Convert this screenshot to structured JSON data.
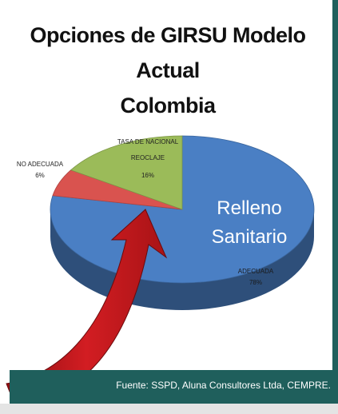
{
  "slide": {
    "title_line1": "Opciones de GIRSU Modelo Actual",
    "title_line2": "Colombia",
    "source": "Fuente: SSPD, Aluna Consultores Ltda, CEMPRE."
  },
  "chart_data": {
    "type": "pie",
    "style": "3d",
    "title": "Opciones de GIRSU Modelo Actual Colombia",
    "slices": [
      {
        "label": "ADECUADA",
        "value": 78,
        "value_label": "78%",
        "inner_label": [
          "Relleno",
          "Sanitario"
        ],
        "color": "#4a7fc4"
      },
      {
        "label": "NO ADECUADA",
        "value": 6,
        "value_label": "6%",
        "color": "#d9534f"
      },
      {
        "label": "TASA DE NACIONAL REOCLAJE",
        "label_lines": [
          "TASA DE NACIONAL",
          "REOCLAJE"
        ],
        "value": 16,
        "value_label": "16%",
        "color": "#9bbb59"
      }
    ],
    "annotation": "red-arrow-pointing-to-chart"
  },
  "colors": {
    "footer_bar": "#1f5f5c",
    "arrow": "#c0161b"
  }
}
